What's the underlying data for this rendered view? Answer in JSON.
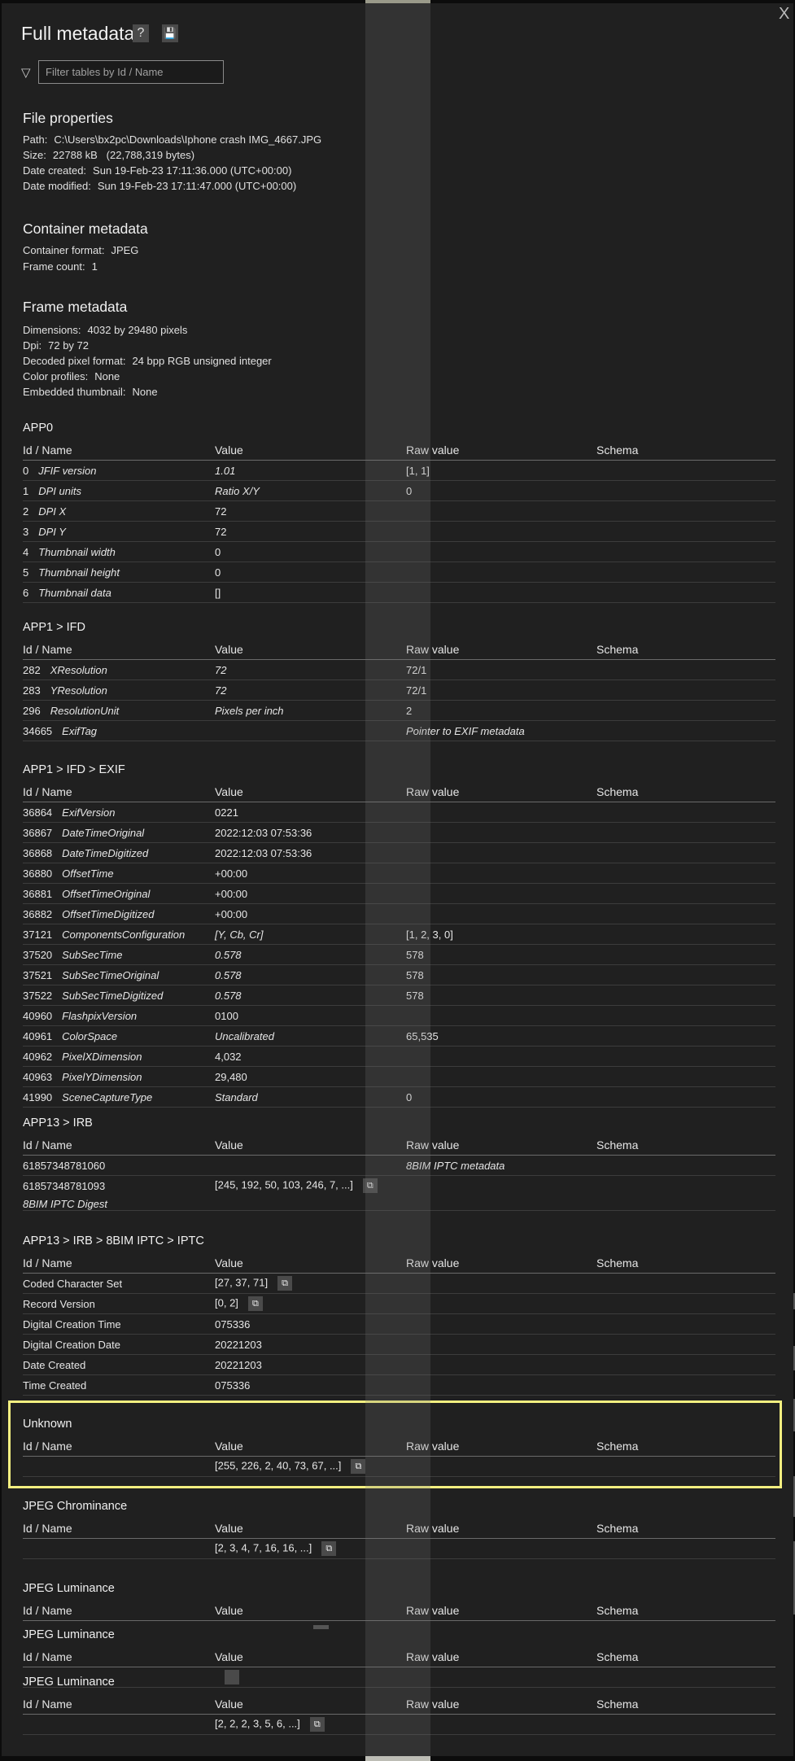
{
  "header": {
    "title": "Full metadata",
    "help_label": "?",
    "save_icon": "save-icon",
    "close_label": "X"
  },
  "filter": {
    "placeholder": "Filter tables by Id / Name",
    "value": ""
  },
  "file_properties": {
    "heading": "File properties",
    "items": [
      {
        "key": "Path:",
        "value": "C:\\Users\\bx2pc\\Downloads\\Iphone crash IMG_4667.JPG"
      },
      {
        "key": "Size:",
        "value": "22788 kB   (22,788,319 bytes)"
      },
      {
        "key": "Date created:",
        "value": "Sun 19-Feb-23 17:11:36.000 (UTC+00:00)"
      },
      {
        "key": "Date modified:",
        "value": "Sun 19-Feb-23 17:11:47.000 (UTC+00:00)"
      }
    ]
  },
  "container_metadata": {
    "heading": "Container metadata",
    "items": [
      {
        "key": "Container format:",
        "value": "JPEG"
      },
      {
        "key": "Frame count:",
        "value": "1"
      }
    ]
  },
  "frame_metadata": {
    "heading": "Frame metadata",
    "items": [
      {
        "key": "Dimensions:",
        "value": "4032 by 29480 pixels"
      },
      {
        "key": "Dpi:",
        "value": "72 by 72"
      },
      {
        "key": "Decoded pixel format:",
        "value": "24 bpp RGB unsigned integer"
      },
      {
        "key": "Color profiles:",
        "value": "None"
      },
      {
        "key": "Embedded thumbnail:",
        "value": "None"
      }
    ]
  },
  "columns": [
    "Id / Name",
    "Value",
    "Raw value",
    "Schema"
  ],
  "highlight_color": "#f3ef80",
  "tables": [
    {
      "title": "APP0",
      "rows": [
        {
          "id": "0",
          "name": "JFIF version",
          "value": "1.01",
          "value_italic": true,
          "raw": "[1, 1]"
        },
        {
          "id": "1",
          "name": "DPI units",
          "value": "Ratio X/Y",
          "value_italic": true,
          "raw": "0"
        },
        {
          "id": "2",
          "name": "DPI X",
          "value": "72"
        },
        {
          "id": "3",
          "name": "DPI Y",
          "value": "72"
        },
        {
          "id": "4",
          "name": "Thumbnail width",
          "value": "0"
        },
        {
          "id": "5",
          "name": "Thumbnail height",
          "value": "0"
        },
        {
          "id": "6",
          "name": "Thumbnail data",
          "value": "[]"
        }
      ]
    },
    {
      "title": "APP1 > IFD",
      "rows": [
        {
          "id": "282",
          "name": "XResolution",
          "value": "72",
          "value_italic": true,
          "raw": "72/1"
        },
        {
          "id": "283",
          "name": "YResolution",
          "value": "72",
          "value_italic": true,
          "raw": "72/1"
        },
        {
          "id": "296",
          "name": "ResolutionUnit",
          "value": "Pixels per inch",
          "value_italic": true,
          "raw": "2"
        },
        {
          "id": "34665",
          "name": "ExifTag",
          "value": "",
          "raw": "Pointer to EXIF metadata",
          "raw_italic": true
        }
      ]
    },
    {
      "title": "APP1 > IFD > EXIF",
      "rows": [
        {
          "id": "36864",
          "name": "ExifVersion",
          "value": "0221"
        },
        {
          "id": "36867",
          "name": "DateTimeOriginal",
          "value": "2022:12:03 07:53:36"
        },
        {
          "id": "36868",
          "name": "DateTimeDigitized",
          "value": "2022:12:03 07:53:36"
        },
        {
          "id": "36880",
          "name": "OffsetTime",
          "value": "+00:00"
        },
        {
          "id": "36881",
          "name": "OffsetTimeOriginal",
          "value": "+00:00"
        },
        {
          "id": "36882",
          "name": "OffsetTimeDigitized",
          "value": "+00:00"
        },
        {
          "id": "37121",
          "name": "ComponentsConfiguration",
          "value": "[Y, Cb, Cr]",
          "value_italic": true,
          "raw": "[1, 2, 3, 0]"
        },
        {
          "id": "37520",
          "name": "SubSecTime",
          "value": "0.578",
          "value_italic": true,
          "raw": "578"
        },
        {
          "id": "37521",
          "name": "SubSecTimeOriginal",
          "value": "0.578",
          "value_italic": true,
          "raw": "578"
        },
        {
          "id": "37522",
          "name": "SubSecTimeDigitized",
          "value": "0.578",
          "value_italic": true,
          "raw": "578"
        },
        {
          "id": "40960",
          "name": "FlashpixVersion",
          "value": "0100"
        },
        {
          "id": "40961",
          "name": "ColorSpace",
          "value": "Uncalibrated",
          "value_italic": true,
          "raw": "65,535"
        },
        {
          "id": "40962",
          "name": "PixelXDimension",
          "value": "4,032"
        },
        {
          "id": "40963",
          "name": "PixelYDimension",
          "value": "29,480"
        },
        {
          "id": "41990",
          "name": "SceneCaptureType",
          "value": "Standard",
          "value_italic": true,
          "raw": "0"
        }
      ]
    },
    {
      "title": "APP13 > IRB",
      "rows": [
        {
          "id": "61857348781060",
          "name": "",
          "value": "",
          "raw": "8BIM IPTC metadata",
          "raw_italic": true
        },
        {
          "id": "61857348781093",
          "name": "",
          "subname": "8BIM IPTC Digest",
          "value": "[245, 192, 50, 103, 246, 7, ...]",
          "open": true
        }
      ]
    },
    {
      "title": "APP13 > IRB > 8BIM IPTC > IPTC",
      "rows": [
        {
          "id": "Coded Character Set",
          "name": "",
          "value": "[27, 37, 71]",
          "open": true
        },
        {
          "id": "Record Version",
          "name": "",
          "value": "[0, 2]",
          "open": true
        },
        {
          "id": "Digital Creation Time",
          "name": "",
          "value": "075336"
        },
        {
          "id": "Digital Creation Date",
          "name": "",
          "value": "20221203"
        },
        {
          "id": "Date Created",
          "name": "",
          "value": "20221203"
        },
        {
          "id": "Time Created",
          "name": "",
          "value": "075336"
        }
      ]
    },
    {
      "title": "Unknown",
      "rows": [
        {
          "id": "",
          "name": "",
          "value": "[255, 226, 2, 40, 73, 67, ...]",
          "open": true
        }
      ]
    },
    {
      "title": "JPEG Chrominance",
      "rows": [
        {
          "id": "",
          "name": "",
          "value": "[2, 3, 4, 7, 16, 16, ...]",
          "open": true
        }
      ]
    },
    {
      "title": "JPEG Luminance",
      "rows": []
    },
    {
      "title": "JPEG Luminance",
      "rows": []
    },
    {
      "title": "JPEG Luminance",
      "rows": [
        {
          "id": "",
          "name": "",
          "value": "[2, 2, 2, 3, 5, 6, ...]",
          "open": true
        }
      ]
    }
  ]
}
